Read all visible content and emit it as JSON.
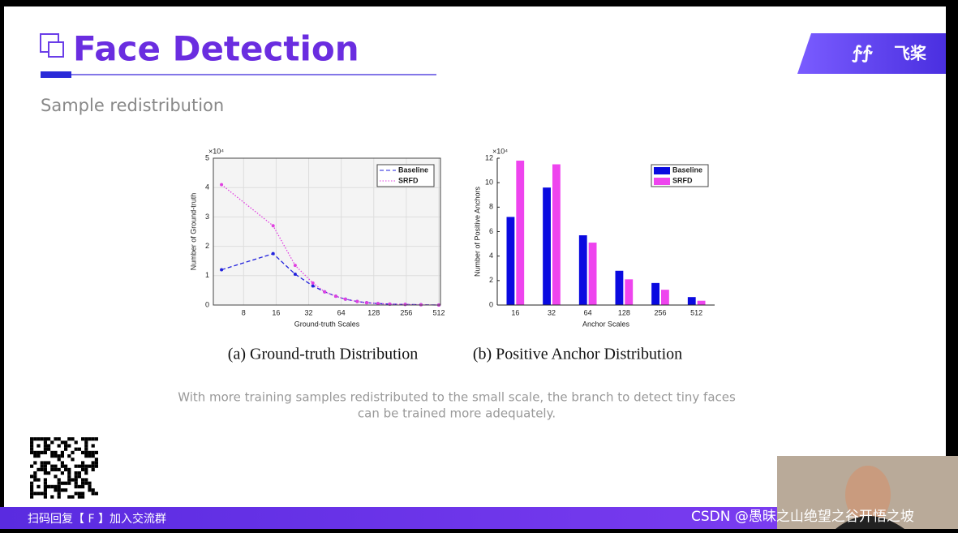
{
  "header": {
    "title": "Face Detection",
    "subtitle": "Sample redistribution",
    "logo": "飞桨"
  },
  "description": [
    "With more training samples redistributed to the small scale, the branch to detect tiny faces",
    "can be trained more adequately."
  ],
  "footer": {
    "banner": "扫码回复【 F 】加入交流群",
    "watermark": "CSDN @愚昧之山绝望之谷开悟之坡"
  },
  "chart_data": [
    {
      "type": "line",
      "caption": "(a)  Ground-truth Distribution",
      "y_multiplier": "×10⁴",
      "x_label": "Ground-truth Scales",
      "y_label": "Number of Ground-truth",
      "x": [
        5,
        15,
        24,
        35,
        45,
        57,
        70,
        90,
        110,
        140,
        180,
        250,
        350,
        512
      ],
      "series": [
        {
          "name": "Baseline",
          "color": "#2222dd",
          "line_style": "dashed",
          "values": [
            1.2,
            1.75,
            1.05,
            0.65,
            0.45,
            0.3,
            0.2,
            0.12,
            0.08,
            0.05,
            0.03,
            0.02,
            0.01,
            0.0
          ]
        },
        {
          "name": "SRFD",
          "color": "#e040e0",
          "line_style": "dotted",
          "values": [
            4.1,
            2.7,
            1.35,
            0.75,
            0.45,
            0.3,
            0.2,
            0.12,
            0.08,
            0.05,
            0.03,
            0.02,
            0.01,
            0.0
          ]
        }
      ],
      "x_scale": "log",
      "xlim": [
        4.2,
        530
      ],
      "xticks": [
        8,
        16,
        32,
        64,
        128,
        256,
        512
      ],
      "ylim": [
        0,
        5
      ],
      "yticks": [
        0,
        1,
        2,
        3,
        4,
        5
      ],
      "grid": true,
      "legend": "upper right"
    },
    {
      "type": "bar",
      "caption": "(b)  Positive Anchor Distribution",
      "y_multiplier": "×10⁴",
      "x_label": "Anchor Scales",
      "y_label": "Number of Positive Anchors",
      "categories": [
        "16",
        "32",
        "64",
        "128",
        "256",
        "512"
      ],
      "series": [
        {
          "name": "Baseline",
          "color": "#0a0ae0",
          "values": [
            7.2,
            9.6,
            5.7,
            2.8,
            1.8,
            0.65
          ]
        },
        {
          "name": "SRFD",
          "color": "#ee44ee",
          "values": [
            11.8,
            11.5,
            5.1,
            2.1,
            1.25,
            0.35
          ]
        }
      ],
      "ylim": [
        0,
        12
      ],
      "yticks": [
        0,
        2,
        4,
        6,
        8,
        10,
        12
      ],
      "grid": false,
      "legend": "upper right"
    }
  ]
}
